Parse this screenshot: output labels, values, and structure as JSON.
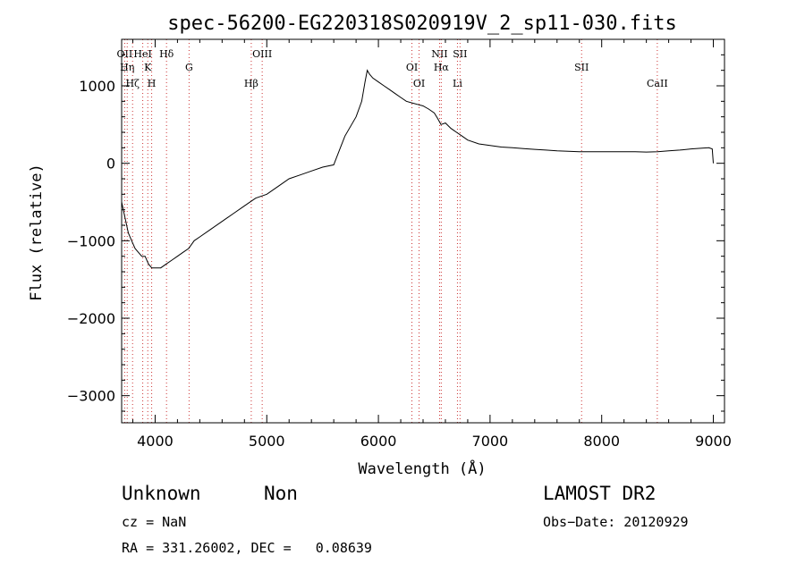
{
  "chart_data": {
    "type": "line",
    "title": "spec-56200-EG220318S020919V_2_sp11-030.fits",
    "xlabel": "Wavelength (Å)",
    "ylabel": "Flux (relative)",
    "xlim": [
      3700,
      9100
    ],
    "ylim": [
      -3350,
      1600
    ],
    "xticks": [
      4000,
      5000,
      6000,
      7000,
      8000,
      9000
    ],
    "yticks": [
      -3000,
      -2000,
      -1000,
      0,
      1000
    ],
    "xtick_labels": [
      "4000",
      "5000",
      "6000",
      "7000",
      "8000",
      "9000"
    ],
    "ytick_labels": [
      "−3000",
      "−2000",
      "−1000",
      "0",
      "1000"
    ],
    "grid": false,
    "series": [
      {
        "color": "#000000",
        "x": [
          3700,
          3730,
          3760,
          3790,
          3820,
          3850,
          3880,
          3910,
          3940,
          3970,
          4000,
          4050,
          4100,
          4150,
          4200,
          4250,
          4300,
          4350,
          4400,
          4500,
          4600,
          4700,
          4800,
          4900,
          5000,
          5100,
          5200,
          5300,
          5400,
          5500,
          5600,
          5700,
          5800,
          5850,
          5880,
          5900,
          5920,
          5950,
          6000,
          6050,
          6100,
          6150,
          6200,
          6250,
          6300,
          6350,
          6400,
          6450,
          6500,
          6530,
          6560,
          6600,
          6650,
          6700,
          6750,
          6800,
          6900,
          7000,
          7100,
          7200,
          7300,
          7400,
          7500,
          7600,
          7700,
          7800,
          7900,
          8000,
          8100,
          8200,
          8300,
          8400,
          8500,
          8600,
          8700,
          8800,
          8900,
          8960,
          8990,
          9000
        ],
        "y": [
          -500,
          -700,
          -900,
          -1000,
          -1100,
          -1150,
          -1200,
          -1200,
          -1300,
          -1350,
          -1350,
          -1350,
          -1300,
          -1250,
          -1200,
          -1150,
          -1100,
          -1000,
          -950,
          -850,
          -750,
          -650,
          -550,
          -450,
          -400,
          -300,
          -200,
          -150,
          -100,
          -50,
          -20,
          350,
          600,
          800,
          1050,
          1200,
          1150,
          1100,
          1050,
          1000,
          950,
          900,
          850,
          800,
          780,
          760,
          740,
          700,
          650,
          580,
          500,
          520,
          450,
          400,
          350,
          300,
          250,
          230,
          210,
          200,
          190,
          180,
          170,
          160,
          155,
          150,
          150,
          150,
          150,
          150,
          150,
          145,
          150,
          160,
          170,
          185,
          195,
          200,
          185,
          0
        ]
      }
    ],
    "lines": [
      {
        "wl": 3727,
        "labels": [
          "OII"
        ]
      },
      {
        "wl": 3750,
        "labels": [
          "Hη"
        ]
      },
      {
        "wl": 3798,
        "labels": [
          "Hζ"
        ]
      },
      {
        "wl": 3889,
        "labels": [
          "HeI"
        ]
      },
      {
        "wl": 3934,
        "labels": [
          "K"
        ]
      },
      {
        "wl": 3969,
        "labels": [
          "H"
        ]
      },
      {
        "wl": 4102,
        "labels": [
          "Hδ"
        ]
      },
      {
        "wl": 4304,
        "labels": [
          "G"
        ]
      },
      {
        "wl": 4861,
        "labels": [
          "Hβ"
        ]
      },
      {
        "wl": 4959,
        "labels": [
          "OIII"
        ]
      },
      {
        "wl": 6300,
        "labels": [
          "OI"
        ]
      },
      {
        "wl": 6364,
        "labels": [
          "OI"
        ]
      },
      {
        "wl": 6548,
        "labels": [
          "NII"
        ]
      },
      {
        "wl": 6563,
        "labels": [
          "Hα"
        ]
      },
      {
        "wl": 6708,
        "labels": [
          "Li"
        ]
      },
      {
        "wl": 6731,
        "labels": [
          "SII"
        ]
      },
      {
        "wl": 7820,
        "labels": [
          "SII"
        ]
      },
      {
        "wl": 8498,
        "labels": [
          "CaII"
        ]
      }
    ]
  },
  "info": {
    "class": "Unknown",
    "subclass": "Non",
    "survey": "LAMOST DR2",
    "cz": "cz = NaN",
    "obsdate": "Obs−Date: 20120929",
    "radec": "RA = 331.26002, DEC =   0.08639"
  }
}
